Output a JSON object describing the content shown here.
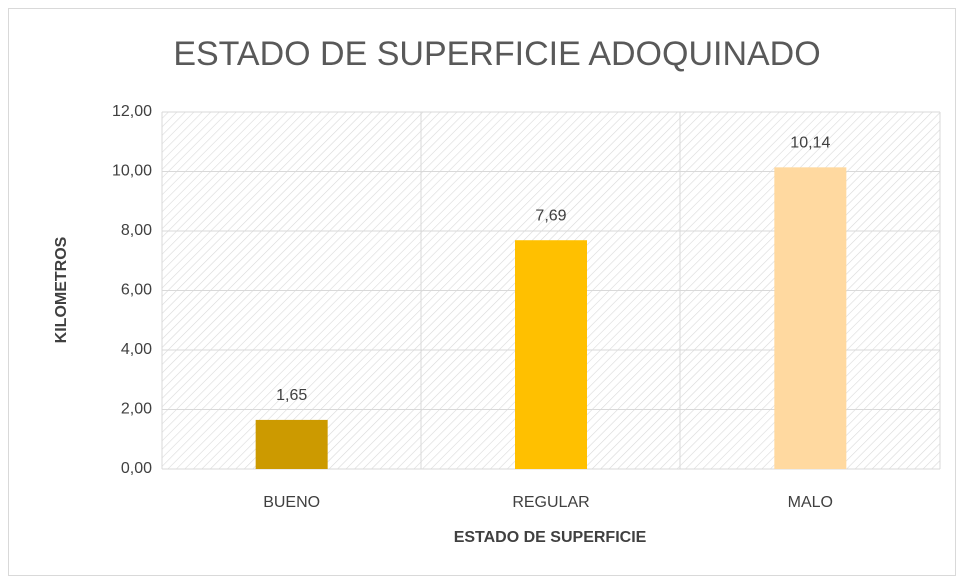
{
  "chart_data": {
    "type": "bar",
    "title": "ESTADO DE SUPERFICIE ADOQUINADO",
    "x_label": "ESTADO DE SUPERFICIE",
    "y_label": "KILOMETROS",
    "categories": [
      "BUENO",
      "REGULAR",
      "MALO"
    ],
    "values": [
      1.65,
      7.69,
      10.14
    ],
    "value_labels": [
      "1,65",
      "7,69",
      "10,14"
    ],
    "colors": [
      "#cc9a00",
      "#ffc000",
      "#ffd9a0"
    ],
    "ylim": [
      0,
      12
    ],
    "yticks": [
      {
        "value": 0,
        "label": "0,00"
      },
      {
        "value": 2,
        "label": "2,00"
      },
      {
        "value": 4,
        "label": "4,00"
      },
      {
        "value": 6,
        "label": "6,00"
      },
      {
        "value": 8,
        "label": "8,00"
      },
      {
        "value": 10,
        "label": "10,00"
      },
      {
        "value": 12,
        "label": "12,00"
      }
    ],
    "grid": true
  }
}
